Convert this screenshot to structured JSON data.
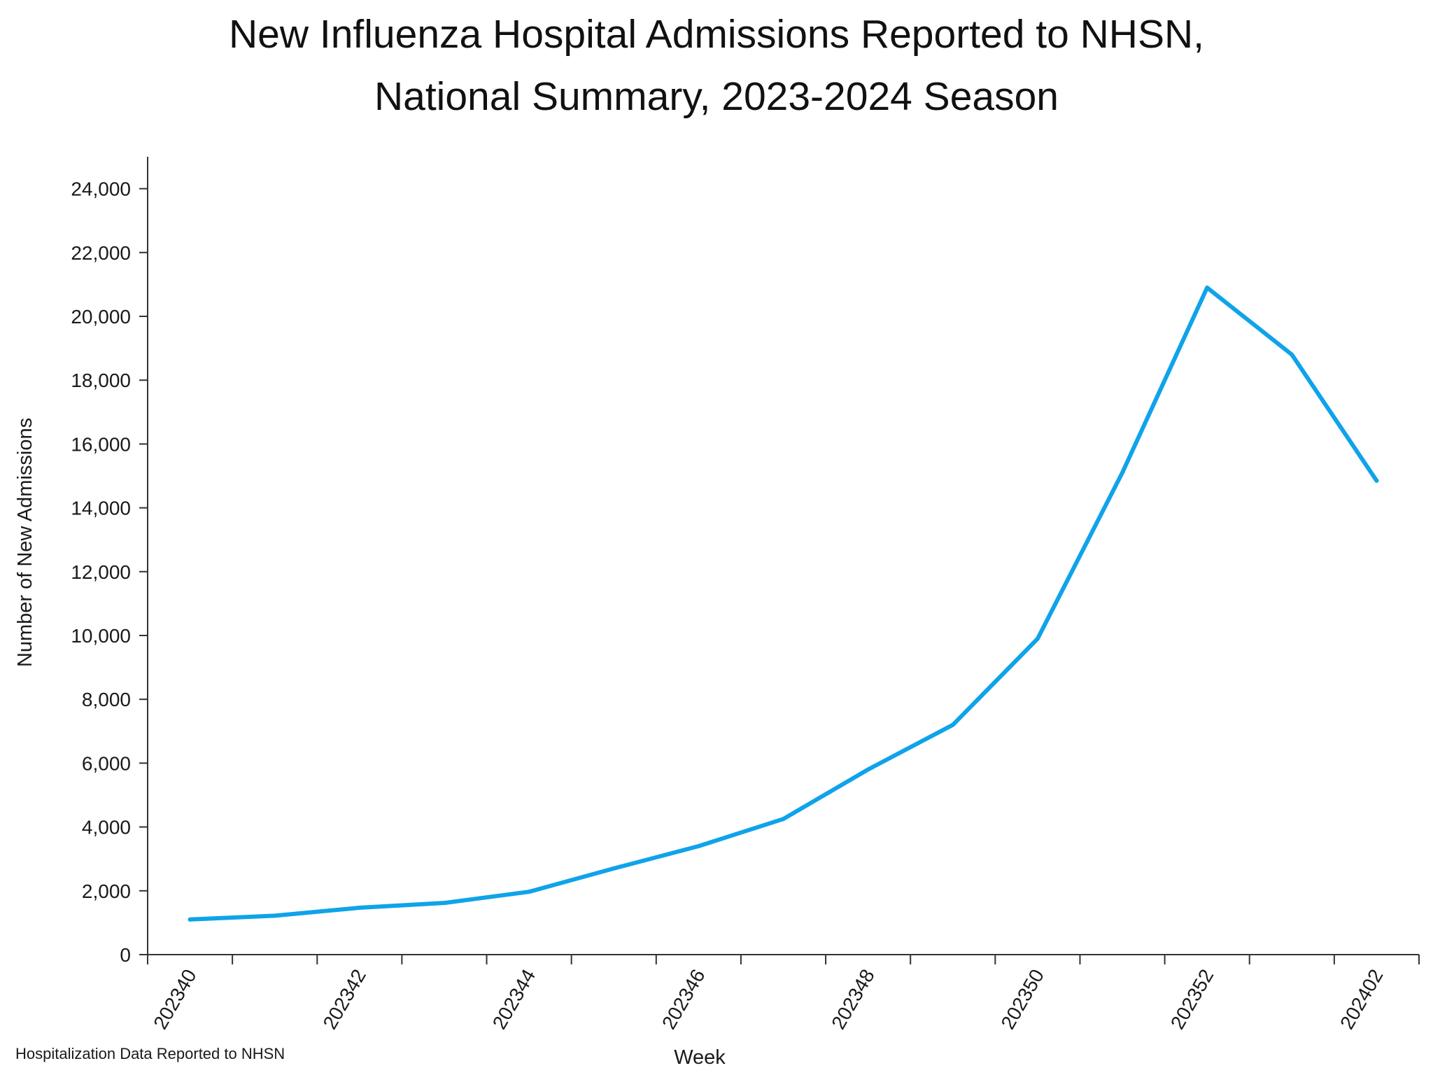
{
  "title_line1": "New Influenza Hospital Admissions Reported to NHSN,",
  "title_line2": "National Summary, 2023-2024 Season",
  "footnote": "Hospitalization Data Reported to NHSN",
  "colors": {
    "line": "#0fa3ea",
    "axis": "#333333"
  },
  "chart_data": {
    "type": "line",
    "title": "New Influenza Hospital Admissions Reported to NHSN, National Summary, 2023-2024 Season",
    "xlabel": "Week",
    "ylabel": "Number of New Admissions",
    "ylim": [
      0,
      25000
    ],
    "yticks": [
      0,
      2000,
      4000,
      6000,
      8000,
      10000,
      12000,
      14000,
      16000,
      18000,
      20000,
      22000,
      24000
    ],
    "ytick_labels": [
      "0",
      "2,000",
      "4,000",
      "6,000",
      "8,000",
      "10,000",
      "12,000",
      "14,000",
      "16,000",
      "18,000",
      "20,000",
      "22,000",
      "24,000"
    ],
    "x": [
      "202340",
      "202341",
      "202342",
      "202343",
      "202344",
      "202345",
      "202346",
      "202347",
      "202348",
      "202349",
      "202350",
      "202351",
      "202352",
      "202401",
      "202402"
    ],
    "xtick_labels": [
      "202340",
      "202342",
      "202344",
      "202346",
      "202348",
      "202350",
      "202352",
      "202402"
    ],
    "series": [
      {
        "values": [
          1100,
          1220,
          1470,
          1620,
          1970,
          2700,
          3400,
          4250,
          5800,
          7200,
          9900,
          15100,
          20900,
          18800,
          14850
        ]
      }
    ],
    "grid": false,
    "legend": "none"
  }
}
